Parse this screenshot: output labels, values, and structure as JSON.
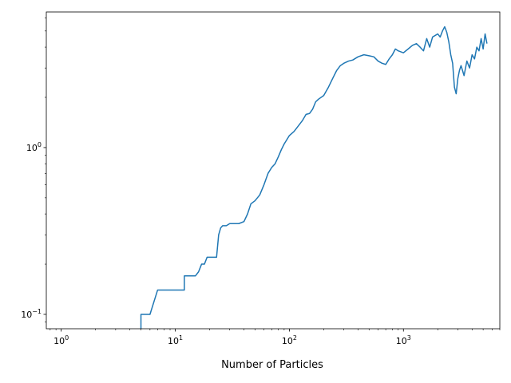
{
  "chart_data": {
    "type": "line",
    "title": "",
    "xlabel": "Number of Particles",
    "ylabel": "",
    "xscale": "log",
    "yscale": "log",
    "xlim": [
      0.74,
      7000
    ],
    "ylim": [
      0.082,
      6.5
    ],
    "grid": false,
    "legend": "none",
    "x_ticks": [
      {
        "value": 1,
        "base": "10",
        "exp": "0"
      },
      {
        "value": 10,
        "base": "10",
        "exp": "1"
      },
      {
        "value": 100,
        "base": "10",
        "exp": "2"
      },
      {
        "value": 1000,
        "base": "10",
        "exp": "3"
      }
    ],
    "y_ticks": [
      {
        "value": 0.1,
        "base": "10",
        "exp": "−1"
      },
      {
        "value": 1,
        "base": "10",
        "exp": "0"
      }
    ],
    "series": [
      {
        "color": "#1f77b4",
        "points": [
          [
            5,
            0.08
          ],
          [
            5,
            0.1
          ],
          [
            6,
            0.1
          ],
          [
            7,
            0.14
          ],
          [
            8,
            0.14
          ],
          [
            9,
            0.14
          ],
          [
            10,
            0.14
          ],
          [
            11,
            0.14
          ],
          [
            12,
            0.14
          ],
          [
            12,
            0.17
          ],
          [
            13,
            0.17
          ],
          [
            14,
            0.17
          ],
          [
            15,
            0.17
          ],
          [
            16,
            0.18
          ],
          [
            17,
            0.2
          ],
          [
            18,
            0.2
          ],
          [
            19,
            0.22
          ],
          [
            20,
            0.22
          ],
          [
            22,
            0.22
          ],
          [
            23,
            0.22
          ],
          [
            24,
            0.3
          ],
          [
            25,
            0.33
          ],
          [
            26,
            0.34
          ],
          [
            28,
            0.34
          ],
          [
            30,
            0.35
          ],
          [
            33,
            0.35
          ],
          [
            36,
            0.35
          ],
          [
            40,
            0.36
          ],
          [
            43,
            0.4
          ],
          [
            46,
            0.46
          ],
          [
            50,
            0.48
          ],
          [
            55,
            0.52
          ],
          [
            60,
            0.6
          ],
          [
            65,
            0.7
          ],
          [
            70,
            0.76
          ],
          [
            75,
            0.8
          ],
          [
            80,
            0.88
          ],
          [
            85,
            0.97
          ],
          [
            90,
            1.05
          ],
          [
            100,
            1.18
          ],
          [
            110,
            1.25
          ],
          [
            120,
            1.35
          ],
          [
            130,
            1.45
          ],
          [
            140,
            1.58
          ],
          [
            150,
            1.6
          ],
          [
            160,
            1.7
          ],
          [
            170,
            1.88
          ],
          [
            180,
            1.95
          ],
          [
            200,
            2.05
          ],
          [
            220,
            2.3
          ],
          [
            240,
            2.6
          ],
          [
            260,
            2.9
          ],
          [
            280,
            3.1
          ],
          [
            300,
            3.2
          ],
          [
            330,
            3.3
          ],
          [
            360,
            3.35
          ],
          [
            400,
            3.5
          ],
          [
            450,
            3.6
          ],
          [
            500,
            3.55
          ],
          [
            550,
            3.5
          ],
          [
            600,
            3.3
          ],
          [
            650,
            3.2
          ],
          [
            700,
            3.15
          ],
          [
            750,
            3.4
          ],
          [
            800,
            3.6
          ],
          [
            850,
            3.9
          ],
          [
            900,
            3.8
          ],
          [
            1000,
            3.7
          ],
          [
            1100,
            3.9
          ],
          [
            1200,
            4.1
          ],
          [
            1300,
            4.2
          ],
          [
            1400,
            4.0
          ],
          [
            1500,
            3.8
          ],
          [
            1600,
            4.5
          ],
          [
            1700,
            4.0
          ],
          [
            1800,
            4.6
          ],
          [
            1900,
            4.7
          ],
          [
            2000,
            4.8
          ],
          [
            2100,
            4.6
          ],
          [
            2200,
            5.0
          ],
          [
            2300,
            5.3
          ],
          [
            2400,
            4.9
          ],
          [
            2500,
            4.3
          ],
          [
            2600,
            3.6
          ],
          [
            2700,
            3.2
          ],
          [
            2800,
            2.3
          ],
          [
            2900,
            2.1
          ],
          [
            3000,
            2.6
          ],
          [
            3100,
            2.9
          ],
          [
            3200,
            3.1
          ],
          [
            3400,
            2.7
          ],
          [
            3600,
            3.3
          ],
          [
            3800,
            3.0
          ],
          [
            4000,
            3.6
          ],
          [
            4200,
            3.4
          ],
          [
            4400,
            4.0
          ],
          [
            4600,
            3.8
          ],
          [
            4800,
            4.5
          ],
          [
            5000,
            3.9
          ],
          [
            5200,
            4.8
          ],
          [
            5400,
            4.2
          ]
        ]
      }
    ]
  }
}
